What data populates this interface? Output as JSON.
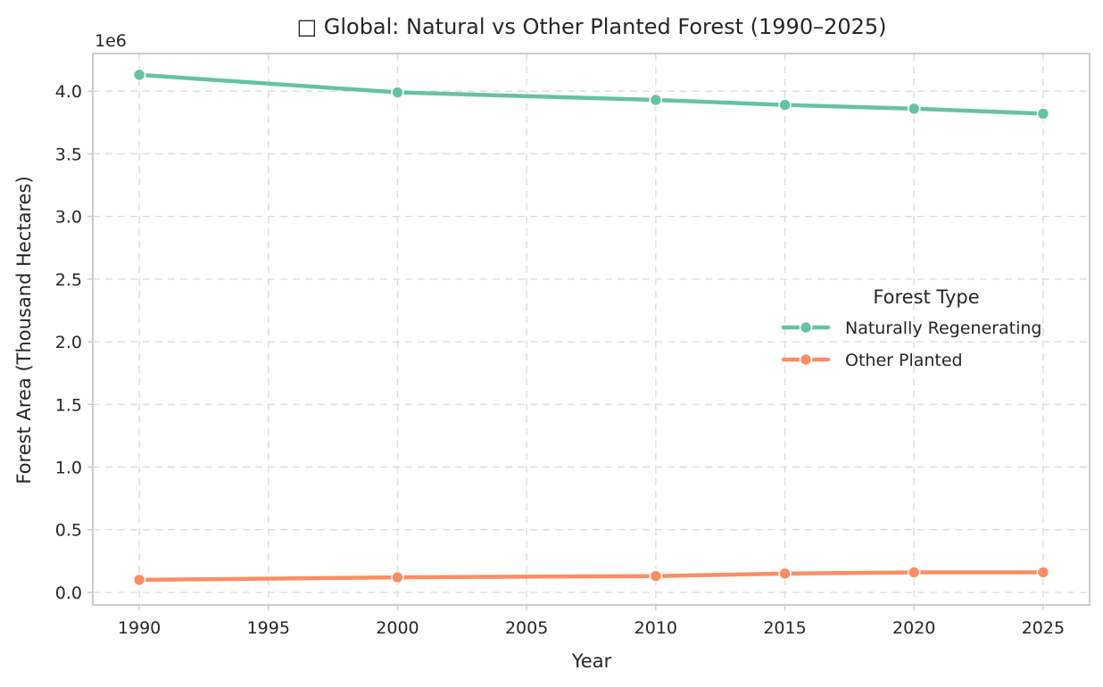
{
  "chart_data": {
    "type": "line",
    "title": "□ Global: Natural vs Other Planted Forest (1990–2025)",
    "xlabel": "Year",
    "ylabel": "Forest Area (Thousand Hectares)",
    "y_scale_label": "1e6",
    "x": [
      1990,
      2000,
      2010,
      2015,
      2020,
      2025
    ],
    "xlim": [
      1988.2,
      2026.8
    ],
    "ylim": [
      -0.1,
      4.3
    ],
    "y_units_multiplier": 1000000,
    "x_ticks": [
      1990,
      1995,
      2000,
      2005,
      2010,
      2015,
      2020,
      2025
    ],
    "x_tick_labels": [
      "1990",
      "1995",
      "2000",
      "2005",
      "2010",
      "2015",
      "2020",
      "2025"
    ],
    "y_ticks": [
      0.0,
      0.5,
      1.0,
      1.5,
      2.0,
      2.5,
      3.0,
      3.5,
      4.0
    ],
    "y_tick_labels": [
      "0.0",
      "0.5",
      "1.0",
      "1.5",
      "2.0",
      "2.5",
      "3.0",
      "3.5",
      "4.0"
    ],
    "grid": true,
    "legend": {
      "title": "Forest Type",
      "placement": "center-right"
    },
    "series": [
      {
        "name": "Naturally Regenerating",
        "color": "#66c2a5",
        "marker": "circle",
        "values": [
          4.13,
          3.99,
          3.93,
          3.89,
          3.86,
          3.82
        ]
      },
      {
        "name": "Other Planted",
        "color": "#fc8d62",
        "marker": "circle",
        "values": [
          0.1,
          0.12,
          0.13,
          0.15,
          0.16,
          0.16
        ]
      }
    ]
  }
}
